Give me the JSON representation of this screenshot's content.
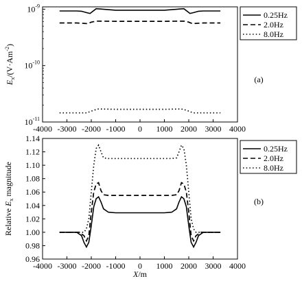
{
  "chart_data": [
    {
      "type": "line",
      "panel_label": "(a)",
      "ylabel_main": "E",
      "ylabel_sub": "x",
      "ylabel_rest": "/(V·Am",
      "ylabel_sup": "-2",
      "ylabel_end": ")",
      "scale": "log",
      "xlim": [
        -4000,
        4000
      ],
      "ylim": [
        1e-11,
        1.1e-09
      ],
      "y_tick_labels": [
        {
          "value": 1e-09,
          "base": "10",
          "exp": "-9"
        },
        {
          "value": 1e-10,
          "base": "10",
          "exp": "-10"
        },
        {
          "value": 1e-11,
          "base": "10",
          "exp": "-11"
        }
      ],
      "legend": [
        "0.25Hz",
        "2.0Hz",
        "8.0Hz"
      ],
      "legend_position": "right",
      "series": [
        {
          "name": "0.25Hz",
          "style": "solid",
          "x": [
            -3300,
            -2600,
            -2400,
            -2200,
            -2050,
            -1800,
            -1650,
            -1000,
            0,
            1000,
            1650,
            1800,
            2050,
            2200,
            2400,
            2600,
            3300
          ],
          "y": [
            9.3e-10,
            9.3e-10,
            9.2e-10,
            8.7e-10,
            8.4e-10,
            1.02e-09,
            1.01e-09,
            9.6e-10,
            9.6e-10,
            9.6e-10,
            1.01e-09,
            1.02e-09,
            8.4e-10,
            8.7e-10,
            9.2e-10,
            9.3e-10,
            9.3e-10
          ]
        },
        {
          "name": "2.0Hz",
          "style": "dashed",
          "x": [
            -3300,
            -2600,
            -2300,
            -2150,
            -2000,
            -1800,
            -1000,
            0,
            1000,
            1800,
            2000,
            2150,
            2300,
            2600,
            3300
          ],
          "y": [
            5.7e-10,
            5.7e-10,
            5.6e-10,
            5.55e-10,
            5.9e-10,
            6.15e-10,
            6.1e-10,
            6.1e-10,
            6.1e-10,
            6.15e-10,
            5.9e-10,
            5.55e-10,
            5.6e-10,
            5.7e-10,
            5.7e-10
          ]
        },
        {
          "name": "8.0Hz",
          "style": "dotted",
          "x": [
            -3300,
            -2200,
            -2100,
            -1900,
            -1700,
            -1000,
            0,
            1000,
            1700,
            1900,
            2100,
            2200,
            3300
          ],
          "y": [
            1.45e-11,
            1.45e-11,
            1.5e-11,
            1.62e-11,
            1.7e-11,
            1.68e-11,
            1.68e-11,
            1.68e-11,
            1.7e-11,
            1.62e-11,
            1.5e-11,
            1.45e-11,
            1.45e-11
          ]
        }
      ]
    },
    {
      "type": "line",
      "panel_label": "(b)",
      "ylabel_pre": "Relative ",
      "ylabel_main": "E",
      "ylabel_sub": "x",
      "ylabel_post": " magnitude",
      "xlabel_main": "X",
      "xlabel_rest": "/m",
      "scale": "linear",
      "xlim": [
        -4000,
        4000
      ],
      "ylim": [
        0.96,
        1.14
      ],
      "x_ticks": [
        -4000,
        -3000,
        -2000,
        -1000,
        0,
        1000,
        2000,
        3000,
        4000
      ],
      "y_ticks": [
        "0.96",
        "0.98",
        "1.00",
        "1.02",
        "1.04",
        "1.06",
        "1.08",
        "1.10",
        "1.12",
        "1.14"
      ],
      "legend": [
        "0.25Hz",
        "2.0Hz",
        "8.0Hz"
      ],
      "legend_position": "top-right",
      "series": [
        {
          "name": "0.25Hz",
          "style": "solid",
          "x": [
            -3300,
            -2600,
            -2400,
            -2300,
            -2200,
            -2100,
            -2000,
            -1900,
            -1800,
            -1700,
            -1600,
            -1500,
            -1300,
            -1000,
            0,
            1000,
            1300,
            1500,
            1600,
            1700,
            1800,
            1900,
            2000,
            2100,
            2200,
            2300,
            2400,
            2600,
            3300
          ],
          "y": [
            1.0,
            1.0,
            0.995,
            0.985,
            0.978,
            0.985,
            1.01,
            1.038,
            1.05,
            1.053,
            1.045,
            1.035,
            1.03,
            1.029,
            1.029,
            1.029,
            1.03,
            1.035,
            1.045,
            1.053,
            1.05,
            1.038,
            1.01,
            0.985,
            0.978,
            0.985,
            0.995,
            1.0,
            1.0
          ]
        },
        {
          "name": "2.0Hz",
          "style": "dashed",
          "x": [
            -3300,
            -2500,
            -2300,
            -2200,
            -2100,
            -2000,
            -1900,
            -1800,
            -1700,
            -1600,
            -1500,
            -1300,
            -1000,
            0,
            1000,
            1300,
            1500,
            1600,
            1700,
            1800,
            1900,
            2000,
            2100,
            2200,
            2300,
            2500,
            3300
          ],
          "y": [
            1.0,
            1.0,
            0.995,
            0.987,
            0.995,
            1.03,
            1.06,
            1.072,
            1.074,
            1.062,
            1.056,
            1.055,
            1.055,
            1.055,
            1.055,
            1.055,
            1.056,
            1.062,
            1.074,
            1.072,
            1.06,
            1.03,
            0.995,
            0.987,
            0.995,
            1.0,
            1.0
          ]
        },
        {
          "name": "8.0Hz",
          "style": "dotted",
          "x": [
            -3300,
            -2300,
            -2200,
            -2100,
            -2000,
            -1900,
            -1800,
            -1700,
            -1600,
            -1500,
            -1300,
            -1000,
            0,
            1000,
            1300,
            1500,
            1600,
            1700,
            1800,
            1900,
            2000,
            2100,
            2200,
            2300,
            3300
          ],
          "y": [
            1.0,
            1.0,
            1.005,
            1.02,
            1.06,
            1.1,
            1.125,
            1.13,
            1.12,
            1.111,
            1.11,
            1.11,
            1.11,
            1.11,
            1.11,
            1.111,
            1.12,
            1.13,
            1.125,
            1.1,
            1.06,
            1.02,
            1.005,
            1.0,
            1.0
          ]
        }
      ]
    }
  ]
}
